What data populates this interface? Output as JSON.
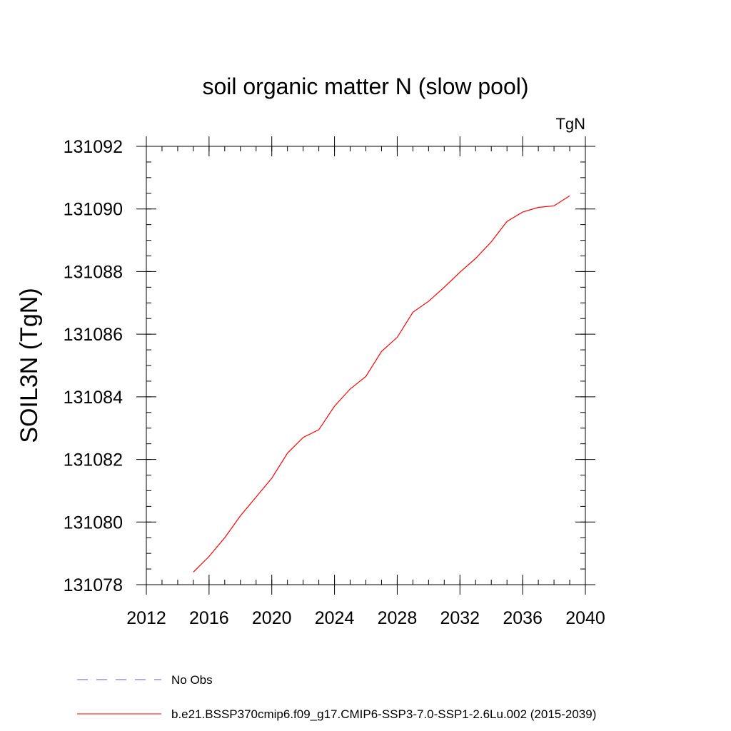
{
  "chart_data": {
    "type": "line",
    "title": "soil organic matter N (slow pool)",
    "units": "TgN",
    "xlabel": "",
    "ylabel": "SOIL3N  (TgN)",
    "xlim": [
      2012,
      2040
    ],
    "ylim": [
      131078,
      131092
    ],
    "x_ticks": [
      2012,
      2016,
      2020,
      2024,
      2028,
      2032,
      2036,
      2040
    ],
    "y_ticks": [
      131078,
      131080,
      131082,
      131084,
      131086,
      131088,
      131090,
      131092
    ],
    "x_tick_labels": [
      "2012",
      "2016",
      "2020",
      "2024",
      "2028",
      "2032",
      "2036",
      "2040"
    ],
    "y_tick_labels": [
      "131078",
      "131080",
      "131082",
      "131084",
      "131086",
      "131088",
      "131090",
      "131092"
    ],
    "x_minor_step": 1,
    "y_minor_step": 0.5,
    "legend": [
      {
        "label": "No Obs",
        "color": "#6a5acd",
        "style": "dashed"
      },
      {
        "label": "b.e21.BSSP370cmip6.f09_g17.CMIP6-SSP3-7.0-SSP1-2.6Lu.002 (2015-2039)",
        "color": "#ff0000",
        "style": "solid"
      }
    ],
    "series": [
      {
        "name": "b.e21.BSSP370cmip6.f09_g17.CMIP6-SSP3-7.0-SSP1-2.6Lu.002 (2015-2039)",
        "color": "#ff0000",
        "x": [
          2015,
          2016,
          2017,
          2018,
          2019,
          2020,
          2021,
          2022,
          2023,
          2024,
          2025,
          2026,
          2027,
          2028,
          2029,
          2030,
          2031,
          2032,
          2033,
          2034,
          2035,
          2036,
          2037,
          2038,
          2039
        ],
        "values": [
          131078.4,
          131078.9,
          131079.5,
          131080.2,
          131080.8,
          131081.4,
          131082.2,
          131082.7,
          131082.95,
          131083.7,
          131084.25,
          131084.65,
          131085.45,
          131085.9,
          131086.7,
          131087.05,
          131087.5,
          131087.98,
          131088.42,
          131088.95,
          131089.6,
          131089.9,
          131090.05,
          131090.1,
          131090.42
        ]
      }
    ]
  }
}
